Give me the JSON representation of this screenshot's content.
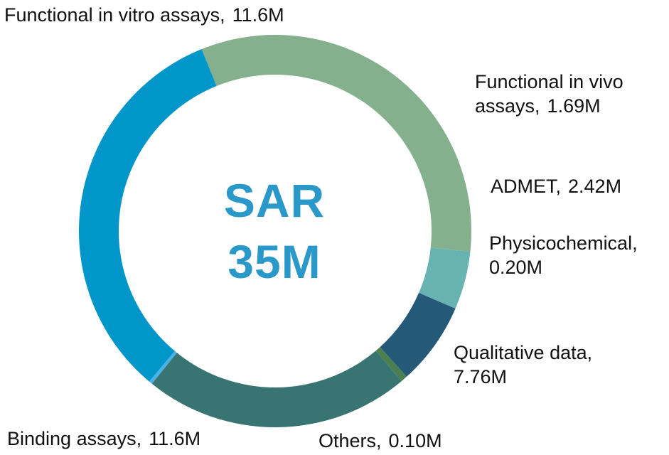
{
  "chart_data": {
    "type": "pie",
    "variant": "donut",
    "center_title": "SAR",
    "center_value": "35M",
    "slices": [
      {
        "name": "Functional in vitro assays,",
        "value": 11.6,
        "value_label": "11.6M",
        "color": "#85b08e"
      },
      {
        "name": "Functional in vivo assays,",
        "value": 1.69,
        "value_label": "1.69M",
        "color": "#67b3b2"
      },
      {
        "name": "ADMET,",
        "value": 2.42,
        "value_label": "2.42M",
        "color": "#245a77"
      },
      {
        "name": "Physicochemical,",
        "value": 0.2,
        "value_label": "0.20M",
        "color": "#4a7f52"
      },
      {
        "name": "Qualitative data,",
        "value": 7.76,
        "value_label": "7.76M",
        "color": "#387471"
      },
      {
        "name": "Others,",
        "value": 0.1,
        "value_label": "0.10M",
        "color": "#46b4e8"
      },
      {
        "name": "Binding assays,",
        "value": 11.6,
        "value_label": "11.6M",
        "color": "#0096c9"
      }
    ]
  }
}
